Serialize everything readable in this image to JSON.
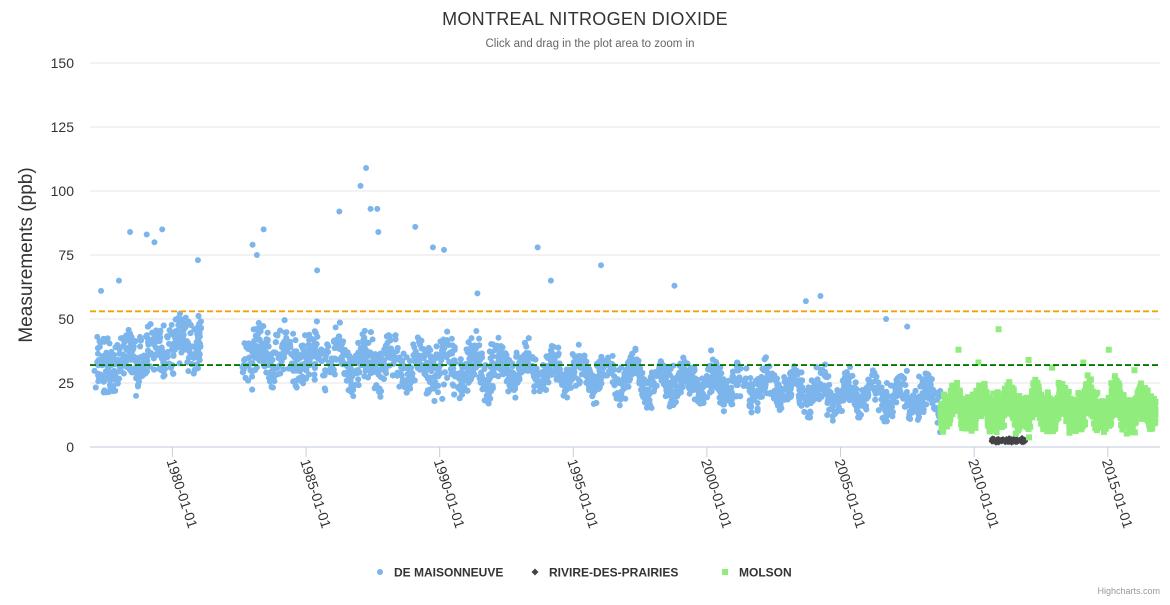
{
  "chart_data": {
    "type": "scatter",
    "title": "MONTREAL NITROGEN DIOXIDE",
    "subtitle": "Click and drag in the plot area to zoom in",
    "ylabel": "Measurements (ppb)",
    "xlabel": "",
    "x_type": "date",
    "xlim": [
      "1976-12-01",
      "2016-12-15"
    ],
    "ylim": [
      0,
      150
    ],
    "y_ticks": [
      0,
      25,
      50,
      75,
      100,
      125,
      150
    ],
    "x_ticks": [
      "1980-01-01",
      "1985-01-01",
      "1990-01-01",
      "1995-01-01",
      "2000-01-01",
      "2005-01-01",
      "2010-01-01",
      "2015-01-01"
    ],
    "grid": true,
    "legend_position": "bottom",
    "reference_lines": [
      {
        "y": 53,
        "color": "#f0a30a",
        "style": "dashed"
      },
      {
        "y": 32,
        "color": "#007a00",
        "style": "dashed"
      }
    ],
    "series": [
      {
        "name": "DE MAISONNEUVE",
        "color": "#7cb5ec",
        "marker": "circle",
        "range": [
          "1977-02-01",
          "2008-09-30"
        ],
        "gaps": [
          [
            "1981-02-01",
            "1982-08-15"
          ]
        ],
        "points": [
          [
            "1978-06-01",
            84
          ],
          [
            "1979-01-15",
            83
          ],
          [
            "1979-05-01",
            80
          ],
          [
            "1979-08-15",
            85
          ],
          [
            "1980-12-15",
            73
          ],
          [
            "1978-01-01",
            65
          ],
          [
            "1977-05-01",
            61
          ],
          [
            "1983-06-01",
            85
          ],
          [
            "1983-01-01",
            79
          ],
          [
            "1983-03-01",
            75
          ],
          [
            "1985-06-01",
            69
          ],
          [
            "1986-04-01",
            92
          ],
          [
            "1987-01-15",
            102
          ],
          [
            "1987-04-01",
            109
          ],
          [
            "1987-06-01",
            93
          ],
          [
            "1987-09-01",
            93
          ],
          [
            "1987-09-15",
            84
          ],
          [
            "1989-02-01",
            86
          ],
          [
            "1989-10-01",
            78
          ],
          [
            "1990-03-01",
            77
          ],
          [
            "1991-06-01",
            60
          ],
          [
            "1993-09-01",
            78
          ],
          [
            "1994-03-01",
            65
          ],
          [
            "1996-01-15",
            71
          ],
          [
            "1998-10-15",
            63
          ],
          [
            "2003-09-15",
            57
          ],
          [
            "2004-04-01",
            59
          ],
          [
            "2006-09-15",
            50
          ],
          [
            "2007-07-01",
            47
          ]
        ]
      },
      {
        "name": "RIVIRE-DES-PRAIRIES",
        "color": "#434348",
        "marker": "diamond",
        "range": [
          "2010-09-01",
          "2011-12-01"
        ],
        "points": [
          [
            "2010-10-01",
            3
          ],
          [
            "2011-03-01",
            2
          ],
          [
            "2011-07-01",
            3
          ],
          [
            "2011-11-01",
            2
          ]
        ]
      },
      {
        "name": "MOLSON",
        "color": "#90ed7d",
        "marker": "square",
        "range": [
          "2008-10-01",
          "2016-10-15"
        ],
        "points": [
          [
            "2009-06-01",
            38
          ],
          [
            "2010-03-01",
            33
          ],
          [
            "2010-12-01",
            46
          ],
          [
            "2012-01-15",
            34
          ],
          [
            "2012-12-01",
            31
          ],
          [
            "2014-02-01",
            33
          ],
          [
            "2015-01-15",
            38
          ],
          [
            "2016-01-01",
            30
          ]
        ]
      }
    ],
    "credits": "Highcharts.com"
  }
}
